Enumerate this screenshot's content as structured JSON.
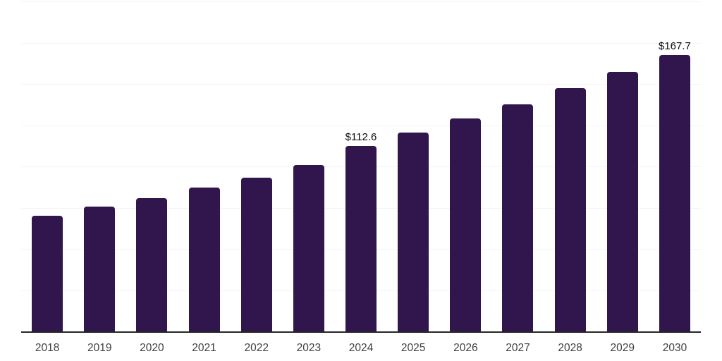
{
  "chart_data": {
    "type": "bar",
    "title": "",
    "xlabel": "",
    "ylabel": "",
    "categories": [
      "2018",
      "2019",
      "2020",
      "2021",
      "2022",
      "2023",
      "2024",
      "2025",
      "2026",
      "2027",
      "2028",
      "2029",
      "2030"
    ],
    "values": [
      70.1,
      75.5,
      80.6,
      87.2,
      93.3,
      100.7,
      112.6,
      120.4,
      128.9,
      137.7,
      147.3,
      157.1,
      167.7
    ],
    "data_labels": {
      "2024": "$112.6",
      "2030": "$167.7"
    },
    "value_prefix": "$",
    "ylim": [
      0,
      200
    ],
    "gridline_step": 25,
    "grid": "horizontal-only",
    "legend": "none",
    "y_axis_ticks_visible": false
  },
  "colors": {
    "bar": "#31164d",
    "gridline": "#f4f4f4",
    "axis_line": "#262626",
    "data_label": "#0d0d0d",
    "tick_label": "#3f3f3f",
    "background": "#ffffff"
  }
}
